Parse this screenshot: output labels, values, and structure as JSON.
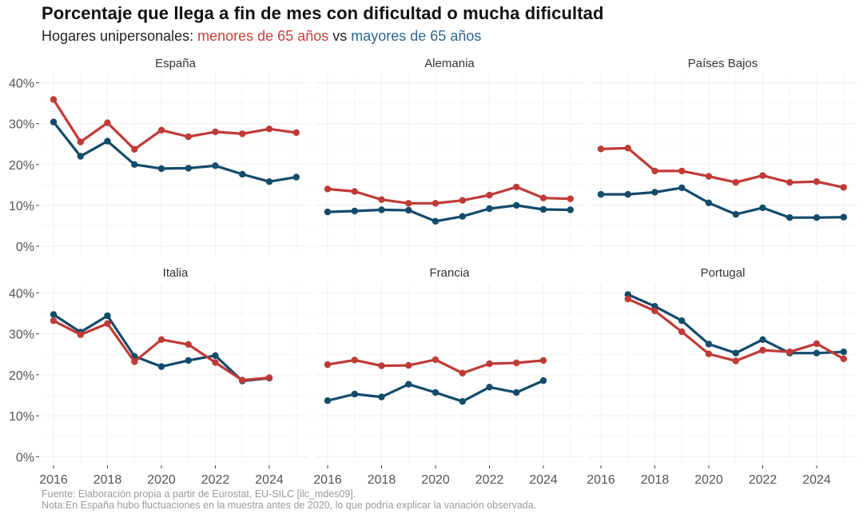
{
  "header": {
    "title": "Porcentaje que llega a fin de mes con dificultad o mucha dificultad",
    "subtitle_prefix": "Hogares unipersonales: ",
    "subtitle_red": "menores de 65 años",
    "subtitle_mid": " vs ",
    "subtitle_blue": "mayores de 65 años"
  },
  "footer": {
    "source": "Fuente: Elaboración propia a partir de Eurostat, EU-SILC [ilc_mdes09].",
    "note": "Nota:En España hubo fluctuaciones en la muestra antes de 2020, lo que podría explicar la variación observada."
  },
  "colors": {
    "menores": "#c03a36",
    "mayores": "#134b6b",
    "grid": "#efefef"
  },
  "chart_data": {
    "type": "line",
    "title": "Porcentaje que llega a fin de mes con dificultad o mucha dificultad",
    "subtitle": "Hogares unipersonales: menores de 65 años vs mayores de 65 años",
    "xlabel": "",
    "ylabel": "",
    "ylim": [
      0,
      40
    ],
    "xlim": [
      2016,
      2025
    ],
    "y_ticks": [
      0,
      10,
      20,
      30,
      40
    ],
    "y_tick_labels": [
      "0%",
      "10%",
      "20%",
      "30%",
      "40%"
    ],
    "x_ticks": [
      2016,
      2018,
      2020,
      2022,
      2024
    ],
    "x_tick_labels": [
      "2016",
      "2018",
      "2020",
      "2022",
      "2024"
    ],
    "grid": true,
    "legend": "in subtitle",
    "series_names": [
      "menores de 65 años",
      "mayores de 65 años"
    ],
    "panels": [
      {
        "name": "España",
        "x": [
          2016,
          2017,
          2018,
          2019,
          2020,
          2021,
          2022,
          2023,
          2024,
          2025
        ],
        "series": [
          {
            "name": "menores de 65 años",
            "values": [
              35.9,
              25.5,
              30.2,
              23.7,
              28.4,
              26.8,
              28.0,
              27.5,
              28.7,
              27.8
            ]
          },
          {
            "name": "mayores de 65 años",
            "values": [
              30.4,
              22.0,
              25.7,
              20.0,
              19.0,
              19.1,
              19.7,
              17.6,
              15.8,
              16.9
            ]
          }
        ]
      },
      {
        "name": "Alemania",
        "x": [
          2016,
          2017,
          2018,
          2019,
          2020,
          2021,
          2022,
          2023,
          2024,
          2025
        ],
        "series": [
          {
            "name": "menores de 65 años",
            "values": [
              14.0,
              13.4,
              11.4,
              10.5,
              10.5,
              11.2,
              12.5,
              14.5,
              11.8,
              11.6
            ]
          },
          {
            "name": "mayores de 65 años",
            "values": [
              8.4,
              8.6,
              8.9,
              8.8,
              6.1,
              7.3,
              9.2,
              10.0,
              9.0,
              8.9
            ]
          }
        ]
      },
      {
        "name": "Países Bajos",
        "x": [
          2016,
          2017,
          2018,
          2019,
          2020,
          2021,
          2022,
          2023,
          2024,
          2025
        ],
        "series": [
          {
            "name": "menores de 65 años",
            "values": [
              23.8,
              24.0,
              18.4,
              18.4,
              17.1,
              15.6,
              17.3,
              15.6,
              15.8,
              14.4
            ]
          },
          {
            "name": "mayores de 65 años",
            "values": [
              12.7,
              12.7,
              13.2,
              14.3,
              10.6,
              7.8,
              9.4,
              7.0,
              7.0,
              7.1
            ]
          }
        ]
      },
      {
        "name": "Italia",
        "x": [
          2016,
          2017,
          2018,
          2019,
          2020,
          2021,
          2022,
          2023,
          2024
        ],
        "series": [
          {
            "name": "menores de 65 años",
            "values": [
              33.2,
              29.8,
              32.5,
              23.2,
              28.6,
              27.4,
              23.0,
              18.7,
              19.3
            ]
          },
          {
            "name": "mayores de 65 años",
            "values": [
              34.7,
              30.4,
              34.4,
              24.5,
              22.0,
              23.5,
              24.7,
              18.5,
              19.2
            ]
          }
        ]
      },
      {
        "name": "Francia",
        "x": [
          2016,
          2017,
          2018,
          2019,
          2020,
          2021,
          2022,
          2023,
          2024
        ],
        "series": [
          {
            "name": "menores de 65 años",
            "values": [
              22.5,
              23.6,
              22.2,
              22.3,
              23.7,
              20.4,
              22.7,
              22.9,
              23.5
            ]
          },
          {
            "name": "mayores de 65 años",
            "values": [
              13.7,
              15.3,
              14.6,
              17.7,
              15.7,
              13.5,
              17.0,
              15.7,
              18.6
            ]
          }
        ]
      },
      {
        "name": "Portugal",
        "x": [
          2017,
          2018,
          2019,
          2020,
          2021,
          2022,
          2023,
          2024,
          2025
        ],
        "series": [
          {
            "name": "menores de 65 años",
            "values": [
              38.5,
              35.6,
              30.5,
              25.1,
              23.4,
              26.0,
              25.6,
              27.6,
              23.9
            ]
          },
          {
            "name": "mayores de 65 años",
            "values": [
              39.6,
              36.7,
              33.2,
              27.5,
              25.3,
              28.6,
              25.3,
              25.3,
              25.6
            ]
          }
        ]
      }
    ]
  }
}
